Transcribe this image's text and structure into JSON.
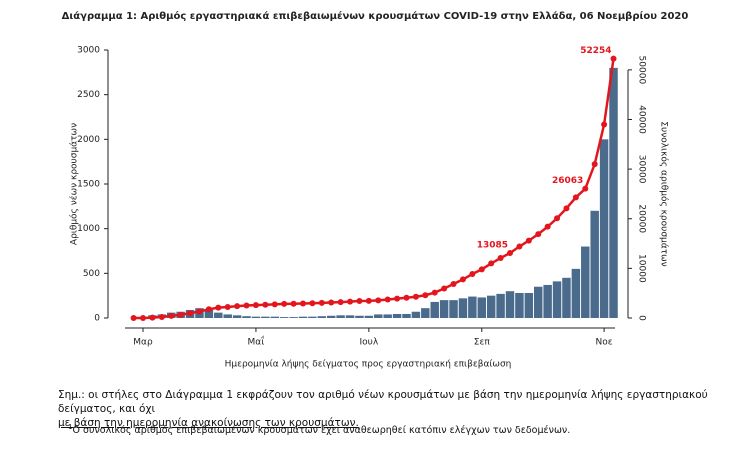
{
  "chart_data": {
    "type": "bar",
    "title": "Διάγραμμα 1: Αριθμός εργαστηριακά επιβεβαιωμένων κρουσμάτων COVID-19 στην Ελλάδα, 06 Νοεμβρίου 2020",
    "x_label": "Ημερομηνία λήψης δείγματος προς εργαστηριακή επιβεβαίωση",
    "y_label": "Αριθμός νέων κρουσμάτων",
    "y2_label": "Συνολικός αριθμός κρουσμάτων",
    "categories": [
      null,
      "Μαρ",
      null,
      null,
      null,
      null,
      null,
      null,
      null,
      null,
      null,
      null,
      null,
      "Μαΐ",
      null,
      null,
      null,
      null,
      null,
      null,
      null,
      null,
      null,
      null,
      null,
      "Ιουλ",
      null,
      null,
      null,
      null,
      null,
      null,
      null,
      null,
      null,
      null,
      null,
      "Σεπ",
      null,
      null,
      null,
      null,
      null,
      null,
      null,
      null,
      null,
      null,
      null,
      null,
      "Νοε",
      null
    ],
    "series": [
      {
        "name": "Νέα κρούσματα",
        "color": "#4a6b8c",
        "values": [
          0,
          5,
          30,
          40,
          60,
          70,
          90,
          110,
          100,
          60,
          40,
          30,
          20,
          15,
          15,
          15,
          10,
          10,
          15,
          15,
          20,
          25,
          30,
          30,
          25,
          25,
          40,
          40,
          45,
          45,
          70,
          110,
          180,
          200,
          200,
          220,
          240,
          230,
          250,
          270,
          300,
          280,
          280,
          350,
          370,
          410,
          450,
          550,
          800,
          1200,
          2000,
          2800
        ]
      },
      {
        "name": "Συνολικά κρούσματα",
        "type": "line",
        "axis": "y2",
        "color": "#e3161d",
        "values": [
          0,
          7,
          73,
          190,
          418,
          624,
          966,
          1314,
          1755,
          2081,
          2224,
          2401,
          2517,
          2591,
          2678,
          2744,
          2836,
          2882,
          2915,
          2980,
          3058,
          3112,
          3203,
          3310,
          3432,
          3458,
          3562,
          3732,
          3910,
          4077,
          4279,
          4587,
          5123,
          5942,
          6858,
          7774,
          8860,
          9800,
          10998,
          12080,
          13085,
          14400,
          15595,
          16900,
          18400,
          20100,
          22100,
          24300,
          26063,
          31000,
          39000,
          52254
        ],
        "value_labels": [
          null,
          null,
          null,
          null,
          null,
          null,
          null,
          null,
          null,
          null,
          null,
          null,
          null,
          null,
          null,
          null,
          null,
          null,
          null,
          null,
          null,
          null,
          null,
          null,
          null,
          null,
          null,
          null,
          null,
          null,
          null,
          null,
          null,
          null,
          null,
          null,
          null,
          null,
          null,
          null,
          "13085",
          null,
          null,
          null,
          null,
          null,
          null,
          null,
          "26063",
          null,
          null,
          "52254"
        ]
      }
    ],
    "ylim": [
      0,
      3000
    ],
    "yticks": [
      0,
      500,
      1000,
      1500,
      2000,
      2500,
      3000
    ],
    "y2lim": [
      0,
      54000
    ],
    "y2ticks": [
      0,
      10000,
      20000,
      30000,
      40000,
      50000
    ]
  },
  "notes": {
    "line1": "Σημ.: οι στήλες στο Διάγραμμα 1 εκφράζουν τον αριθμό νέων κρουσμάτων με βάση την ημερομηνία λήψης εργαστηριακού δείγματος, και όχι",
    "line2": "με βάση την ημερομηνία ανακοίνωσης των κρουσμάτων.",
    "footnote_mark": "1",
    "footnote": "Ο συνολικός αριθμός επιβεβαιωμένων κρουσμάτων έχει αναθεωρηθεί κατόπιν ελέγχων των δεδομένων."
  }
}
